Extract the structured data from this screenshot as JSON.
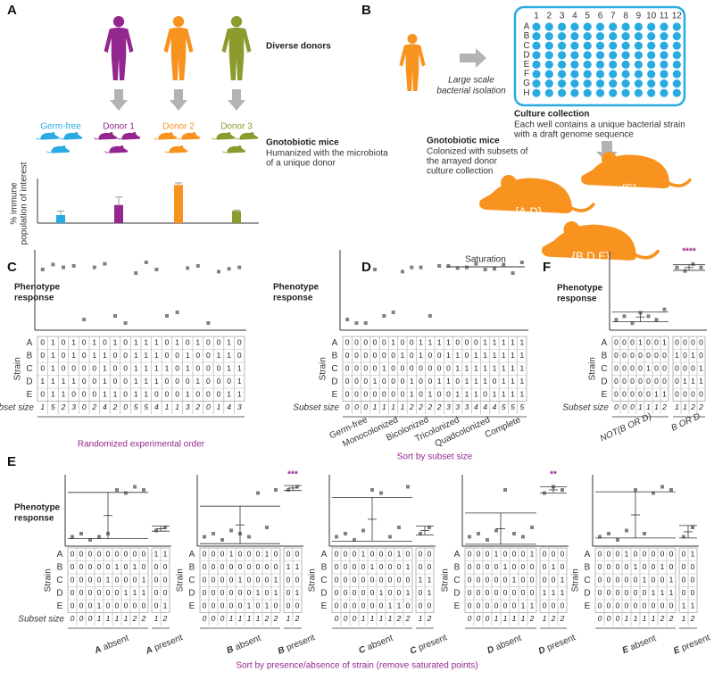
{
  "panel_a": {
    "label": "A",
    "donors_title": "Diverse donors",
    "mice_title": "Gnotobiotic mice",
    "mice_subtitle": [
      "Humanized with the microbiota",
      "of a unique donor"
    ],
    "y_label": [
      "% immune",
      "population of interest"
    ],
    "ylim": [
      0,
      1
    ],
    "groups": [
      {
        "name": "Germ-free",
        "color": "#29abe2",
        "value": 0.2,
        "error": 0.1,
        "donor": false
      },
      {
        "name": "Donor 1",
        "color": "#93278f",
        "value": 0.45,
        "error": 0.2,
        "donor": true
      },
      {
        "name": "Donor 2",
        "color": "#f7931e",
        "value": 0.95,
        "error": 0.05,
        "donor": true
      },
      {
        "name": "Donor 3",
        "color": "#8c9a2e",
        "value": 0.3,
        "error": 0.02,
        "donor": true
      }
    ]
  },
  "panel_b": {
    "label": "B",
    "donor_color": "#f7931e",
    "isolation": [
      "Large scale",
      "bacterial isolation"
    ],
    "plate_columns": [
      1,
      2,
      3,
      4,
      5,
      6,
      7,
      8,
      9,
      10,
      11,
      12
    ],
    "plate_rows": [
      "A",
      "B",
      "C",
      "D",
      "E",
      "F",
      "G",
      "H"
    ],
    "plate_color": "#29abe2",
    "collection_title": "Culture collection",
    "collection_text": [
      "Each well contains a unique bacterial strain",
      "with a draft genome sequence"
    ],
    "mice_title": "Gnotobiotic mice",
    "mice_text": [
      "Colonized with subsets of",
      "the arrayed donor",
      "culture collection"
    ],
    "mice": [
      "{A,D}",
      "{E}",
      "{B,D,E}"
    ],
    "mouse_color": "#f7931e"
  },
  "shared": {
    "phenotype_label": [
      "Phenotype",
      "response"
    ],
    "strain_label": "Strain",
    "strains": [
      "A",
      "B",
      "C",
      "D",
      "E"
    ],
    "subset_label": "Subset size",
    "absent": "absent",
    "present": "present",
    "accent_color": "#93278f",
    "point_color": "#808080"
  },
  "panel_c": {
    "label": "C",
    "caption": "Randomized experimental order",
    "ylim": [
      0,
      1
    ],
    "rows": [
      [
        0,
        1,
        0,
        1,
        0,
        1,
        0,
        1,
        0,
        1,
        1,
        1,
        0,
        1,
        0,
        1,
        0,
        0,
        1,
        0
      ],
      [
        0,
        1,
        0,
        1,
        0,
        1,
        1,
        0,
        0,
        1,
        1,
        1,
        0,
        0,
        1,
        0,
        0,
        1,
        1,
        0
      ],
      [
        0,
        1,
        0,
        0,
        0,
        0,
        1,
        0,
        0,
        1,
        1,
        1,
        1,
        0,
        1,
        0,
        0,
        0,
        1,
        1
      ],
      [
        1,
        1,
        1,
        1,
        0,
        0,
        1,
        0,
        0,
        1,
        1,
        1,
        0,
        0,
        0,
        1,
        0,
        0,
        0,
        1
      ],
      [
        0,
        1,
        1,
        0,
        0,
        0,
        1,
        1,
        0,
        1,
        1,
        0,
        0,
        0,
        1,
        0,
        0,
        0,
        1,
        1
      ]
    ],
    "sizes": [
      1,
      5,
      2,
      3,
      0,
      2,
      4,
      2,
      0,
      5,
      5,
      4,
      1,
      1,
      3,
      2,
      0,
      1,
      4,
      3
    ],
    "phenotype": [
      0.85,
      0.92,
      0.88,
      0.9,
      0.15,
      0.88,
      0.93,
      0.2,
      0.1,
      0.8,
      0.95,
      0.85,
      0.2,
      0.25,
      0.87,
      0.9,
      0.1,
      0.82,
      0.86,
      0.88
    ]
  },
  "panel_d": {
    "label": "D",
    "caption": "Sort by subset size",
    "saturation": "Saturation",
    "ylim": [
      0,
      1
    ],
    "groups": [
      "Germ-free",
      "Monocolonized",
      "Bicolonized",
      "Tricolonized",
      "Quadcolonized",
      "Complete"
    ],
    "rows": [
      [
        0,
        0,
        0,
        0,
        0,
        1,
        0,
        0,
        1,
        1,
        1,
        1,
        0,
        0,
        0,
        1,
        1,
        1,
        1,
        1
      ],
      [
        0,
        0,
        0,
        0,
        0,
        0,
        1,
        0,
        1,
        0,
        0,
        1,
        1,
        0,
        1,
        1,
        1,
        1,
        1,
        1
      ],
      [
        0,
        0,
        0,
        0,
        1,
        0,
        0,
        0,
        0,
        0,
        0,
        0,
        1,
        1,
        1,
        1,
        1,
        1,
        1,
        1
      ],
      [
        0,
        0,
        0,
        1,
        0,
        0,
        0,
        1,
        0,
        0,
        1,
        1,
        0,
        1,
        1,
        1,
        0,
        1,
        1,
        1
      ],
      [
        0,
        0,
        0,
        0,
        0,
        0,
        0,
        1,
        0,
        1,
        0,
        0,
        1,
        1,
        1,
        0,
        1,
        1,
        1,
        1
      ]
    ],
    "sizes": [
      0,
      0,
      0,
      1,
      1,
      1,
      1,
      2,
      2,
      2,
      2,
      3,
      3,
      3,
      4,
      4,
      4,
      5,
      5,
      5
    ],
    "phenotype": [
      0.15,
      0.1,
      0.1,
      0.85,
      0.2,
      0.25,
      0.82,
      0.88,
      0.88,
      0.2,
      0.9,
      0.9,
      0.87,
      0.88,
      0.93,
      0.85,
      0.86,
      0.92,
      0.8,
      0.95
    ]
  },
  "panel_f": {
    "label": "F",
    "ylim": [
      0,
      1
    ],
    "groups": [
      {
        "label": "NOT(B OR D)",
        "rows": [
          [
            0,
            0,
            0,
            1,
            0,
            0,
            1
          ],
          [
            0,
            0,
            0,
            0,
            0,
            0,
            0
          ],
          [
            0,
            0,
            0,
            0,
            1,
            0,
            0
          ],
          [
            0,
            0,
            0,
            0,
            0,
            0,
            0
          ],
          [
            0,
            0,
            0,
            0,
            0,
            1,
            1
          ]
        ],
        "sizes": [
          0,
          0,
          0,
          1,
          1,
          1,
          2
        ],
        "phenotype": [
          0.15,
          0.2,
          0.1,
          0.25,
          0.2,
          0.15,
          0.3
        ],
        "mean": 0.19,
        "sd": 0.07
      },
      {
        "label": "B OR D",
        "rows": [
          [
            0,
            0,
            0,
            0
          ],
          [
            1,
            0,
            1,
            0
          ],
          [
            0,
            0,
            0,
            1
          ],
          [
            0,
            1,
            1,
            1
          ],
          [
            0,
            0,
            0,
            0
          ]
        ],
        "sizes": [
          1,
          1,
          2,
          2
        ],
        "phenotype": [
          0.9,
          0.85,
          0.95,
          0.9
        ],
        "mean": 0.9,
        "sd": 0.04,
        "significance": "****"
      }
    ]
  },
  "panel_e": {
    "label": "E",
    "caption": "Sort by presence/absence of strain (remove saturated points)",
    "ylim": [
      0,
      1
    ],
    "panels": [
      {
        "strain": "A",
        "absent": {
          "rows": [
            [
              0,
              0,
              0,
              0,
              0,
              0,
              0,
              0,
              0
            ],
            [
              0,
              0,
              0,
              0,
              0,
              1,
              0,
              1,
              0
            ],
            [
              0,
              0,
              0,
              0,
              1,
              0,
              0,
              0,
              1
            ],
            [
              0,
              0,
              0,
              0,
              0,
              0,
              1,
              1,
              1
            ],
            [
              0,
              0,
              0,
              1,
              0,
              0,
              0,
              0,
              0
            ]
          ],
          "sizes": [
            0,
            0,
            0,
            1,
            1,
            1,
            1,
            2,
            2
          ],
          "phenotype": [
            0.15,
            0.2,
            0.1,
            0.15,
            0.2,
            0.9,
            0.85,
            0.95,
            0.9
          ],
          "mean": 0.49,
          "sd": 0.37
        },
        "present": {
          "rows": [
            [
              1,
              1
            ],
            [
              0,
              0
            ],
            [
              0,
              0
            ],
            [
              0,
              0
            ],
            [
              0,
              1
            ]
          ],
          "sizes": [
            1,
            2
          ],
          "phenotype": [
            0.25,
            0.3
          ],
          "mean": 0.28,
          "sd": 0.04
        }
      },
      {
        "strain": "B",
        "absent": {
          "rows": [
            [
              0,
              0,
              0,
              1,
              0,
              0,
              0,
              1,
              0
            ],
            [
              0,
              0,
              0,
              0,
              0,
              0,
              0,
              0,
              0
            ],
            [
              0,
              0,
              0,
              0,
              1,
              0,
              0,
              0,
              1
            ],
            [
              0,
              0,
              0,
              0,
              0,
              0,
              1,
              0,
              1
            ],
            [
              0,
              0,
              0,
              0,
              0,
              1,
              0,
              1,
              0
            ]
          ],
          "sizes": [
            0,
            0,
            0,
            1,
            1,
            1,
            1,
            2,
            2
          ],
          "phenotype": [
            0.15,
            0.2,
            0.1,
            0.25,
            0.2,
            0.15,
            0.85,
            0.3,
            0.9
          ],
          "mean": 0.34,
          "sd": 0.3
        },
        "present": {
          "rows": [
            [
              0,
              0
            ],
            [
              1,
              1
            ],
            [
              0,
              0
            ],
            [
              0,
              1
            ],
            [
              0,
              0
            ]
          ],
          "sizes": [
            1,
            2
          ],
          "phenotype": [
            0.9,
            0.95
          ],
          "mean": 0.93,
          "sd": 0.04,
          "significance": "***"
        }
      },
      {
        "strain": "C",
        "absent": {
          "rows": [
            [
              0,
              0,
              0,
              1,
              0,
              0,
              0,
              1,
              0
            ],
            [
              0,
              0,
              0,
              0,
              1,
              0,
              0,
              0,
              1
            ],
            [
              0,
              0,
              0,
              0,
              0,
              0,
              0,
              0,
              0
            ],
            [
              0,
              0,
              0,
              0,
              0,
              1,
              0,
              0,
              1
            ],
            [
              0,
              0,
              0,
              0,
              0,
              0,
              1,
              1,
              0
            ]
          ],
          "sizes": [
            0,
            0,
            0,
            1,
            1,
            1,
            1,
            2,
            2
          ],
          "phenotype": [
            0.15,
            0.2,
            0.1,
            0.25,
            0.9,
            0.85,
            0.15,
            0.3,
            0.95
          ],
          "mean": 0.43,
          "sd": 0.35
        },
        "present": {
          "rows": [
            [
              0,
              0
            ],
            [
              0,
              0
            ],
            [
              1,
              1
            ],
            [
              0,
              1
            ],
            [
              0,
              0
            ]
          ],
          "sizes": [
            1,
            2
          ],
          "phenotype": [
            0.2,
            0.3
          ],
          "mean": 0.25,
          "sd": 0.07
        }
      },
      {
        "strain": "D",
        "absent": {
          "rows": [
            [
              0,
              0,
              0,
              1,
              0,
              0,
              0,
              1
            ],
            [
              0,
              0,
              0,
              0,
              1,
              0,
              0,
              0
            ],
            [
              0,
              0,
              0,
              0,
              0,
              1,
              0,
              0
            ],
            [
              0,
              0,
              0,
              0,
              0,
              0,
              0,
              0
            ],
            [
              0,
              0,
              0,
              0,
              0,
              0,
              1,
              1
            ]
          ],
          "sizes": [
            0,
            0,
            0,
            1,
            1,
            1,
            1,
            2
          ],
          "phenotype": [
            0.15,
            0.2,
            0.1,
            0.25,
            0.9,
            0.2,
            0.15,
            0.3
          ],
          "mean": 0.28,
          "sd": 0.25
        },
        "present": {
          "rows": [
            [
              0,
              0,
              0
            ],
            [
              0,
              1,
              0
            ],
            [
              0,
              0,
              1
            ],
            [
              1,
              1,
              1
            ],
            [
              0,
              0,
              0
            ]
          ],
          "sizes": [
            1,
            2,
            2
          ],
          "phenotype": [
            0.85,
            0.95,
            0.9
          ],
          "mean": 0.9,
          "sd": 0.05,
          "significance": "**"
        }
      },
      {
        "strain": "E",
        "absent": {
          "rows": [
            [
              0,
              0,
              0,
              1,
              0,
              0,
              0,
              0,
              0
            ],
            [
              0,
              0,
              0,
              0,
              1,
              0,
              0,
              1,
              0
            ],
            [
              0,
              0,
              0,
              0,
              0,
              1,
              0,
              0,
              1
            ],
            [
              0,
              0,
              0,
              0,
              0,
              0,
              1,
              1,
              1
            ],
            [
              0,
              0,
              0,
              0,
              0,
              0,
              0,
              0,
              0
            ]
          ],
          "sizes": [
            0,
            0,
            0,
            1,
            1,
            1,
            1,
            2,
            2
          ],
          "phenotype": [
            0.15,
            0.2,
            0.1,
            0.25,
            0.9,
            0.2,
            0.85,
            0.95,
            0.9
          ],
          "mean": 0.5,
          "sd": 0.37
        },
        "present": {
          "rows": [
            [
              0,
              1
            ],
            [
              0,
              0
            ],
            [
              0,
              0
            ],
            [
              0,
              0
            ],
            [
              1,
              1
            ]
          ],
          "sizes": [
            1,
            2
          ],
          "phenotype": [
            0.15,
            0.3
          ],
          "mean": 0.23,
          "sd": 0.1
        }
      }
    ]
  }
}
